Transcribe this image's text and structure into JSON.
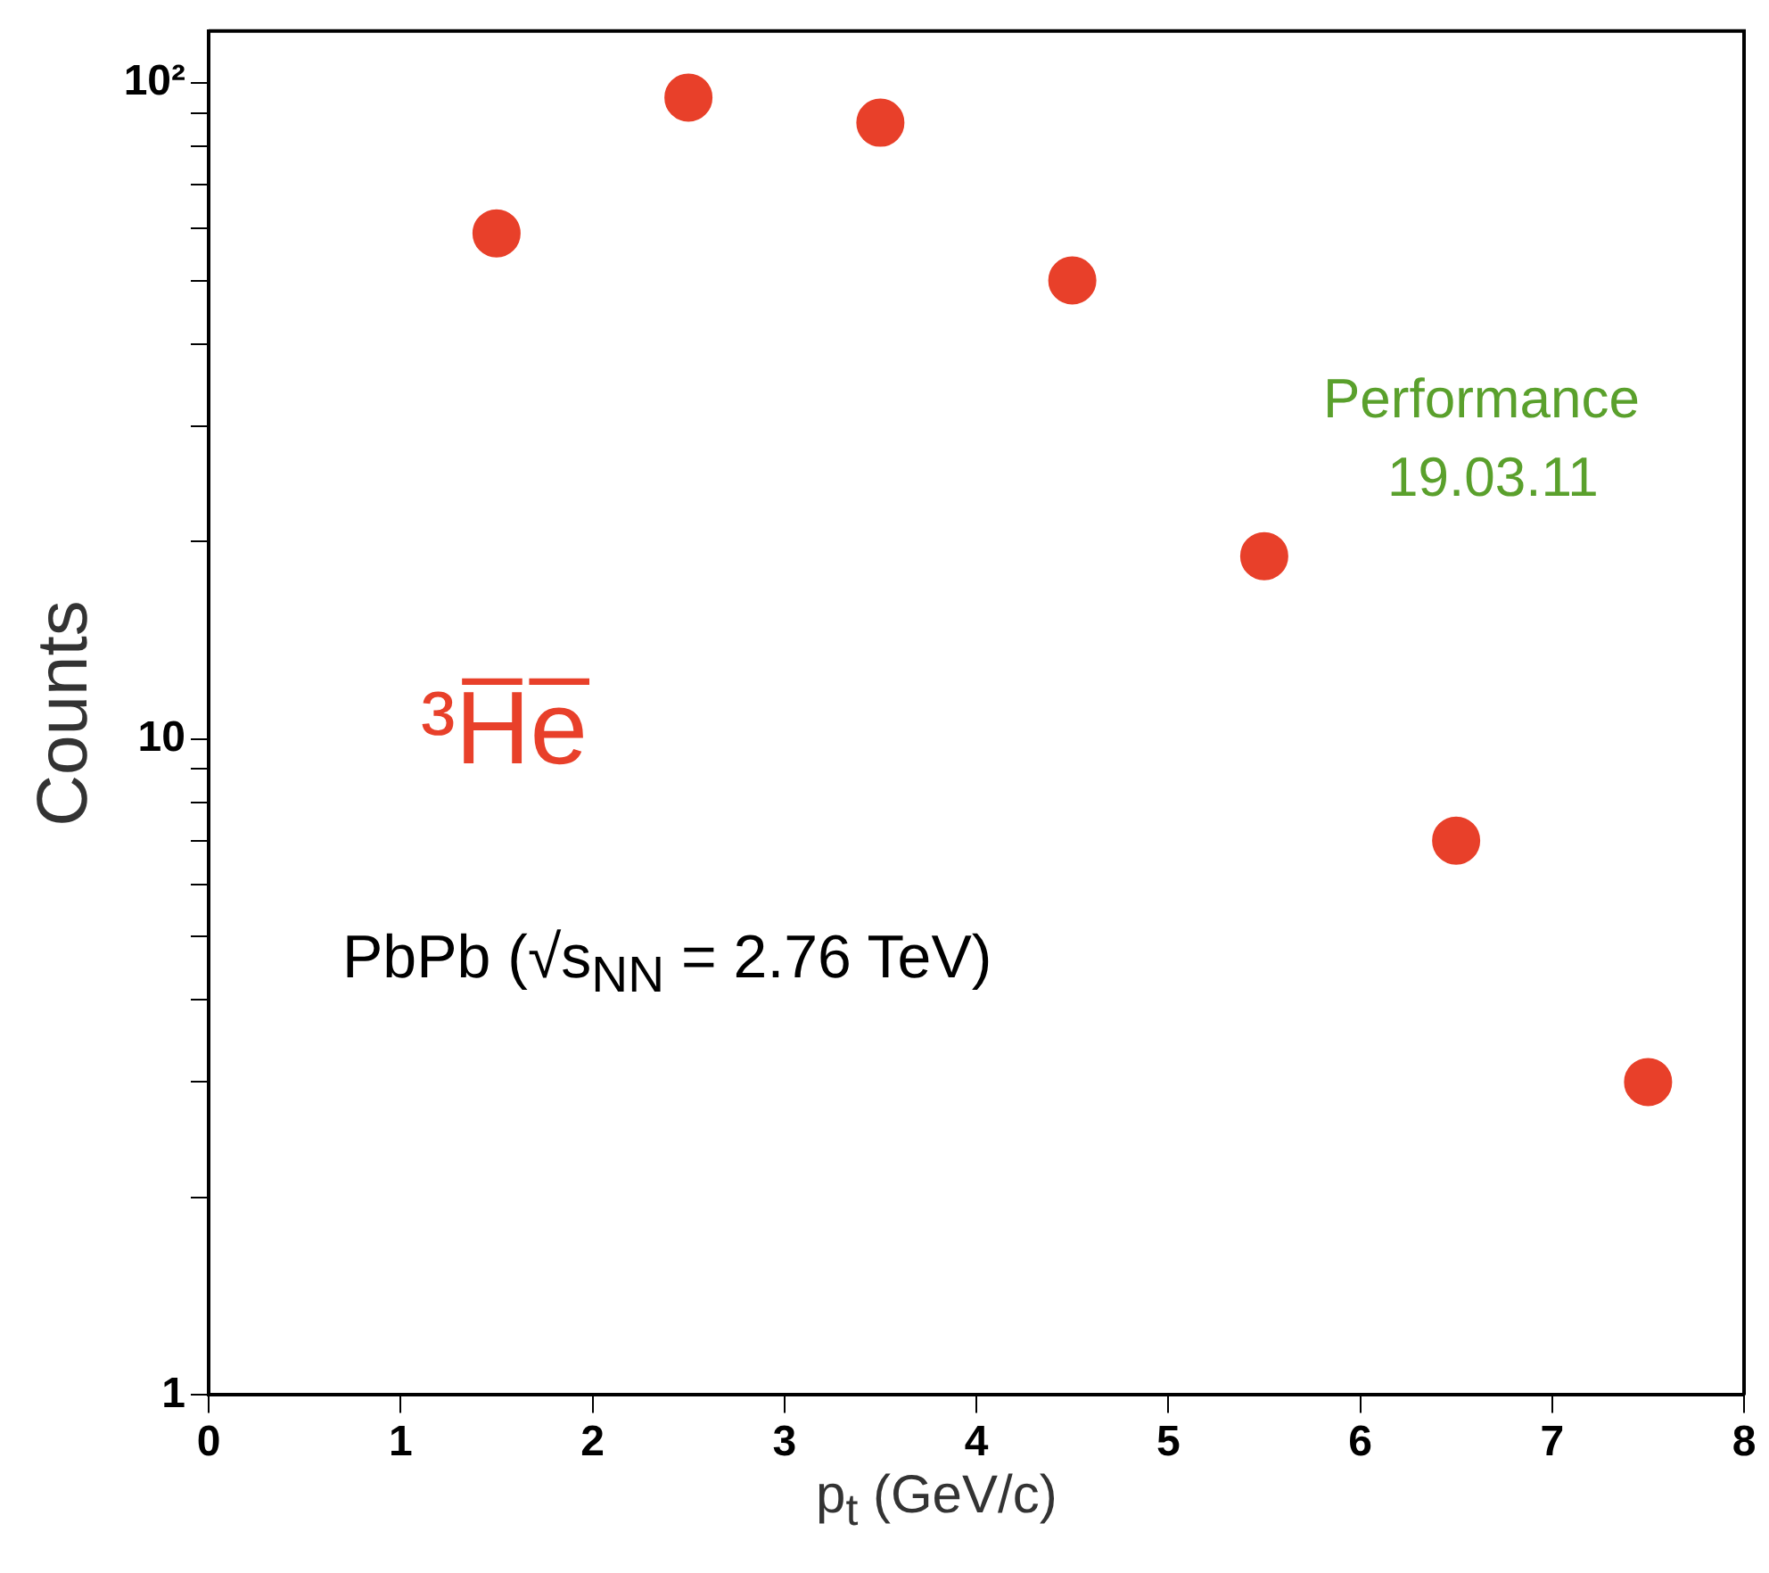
{
  "chart_data": {
    "type": "scatter",
    "xlabel": "p$_{t}$ (GeV/c)",
    "ylabel": "Counts",
    "log": "y",
    "marker": "circle",
    "grid": false,
    "legend": false,
    "x": [
      1.5,
      2.5,
      3.5,
      4.5,
      5.5,
      6.5,
      7.5
    ],
    "series": [
      {
        "color": "#e8402a",
        "values": [
          59,
          95,
          87,
          50,
          19,
          7,
          3.0
        ]
      }
    ],
    "xlim": [
      0,
      8
    ],
    "xticks": [
      0,
      1,
      2,
      3,
      4,
      5,
      6,
      7,
      8
    ],
    "ylim": [
      1,
      120
    ],
    "yticks": [
      1,
      {
        "value": 2,
        "label": null
      },
      {
        "value": 3,
        "label": null
      },
      {
        "value": 4,
        "label": null
      },
      {
        "value": 5,
        "label": null
      },
      {
        "value": 6,
        "label": null
      },
      {
        "value": 7,
        "label": null
      },
      {
        "value": 8,
        "label": null
      },
      {
        "value": 9,
        "label": null
      },
      10,
      {
        "value": 20,
        "label": null
      },
      {
        "value": 30,
        "label": null
      },
      {
        "value": 40,
        "label": null
      },
      {
        "value": 50,
        "label": null
      },
      {
        "value": 60,
        "label": null
      },
      {
        "value": 70,
        "label": null
      },
      {
        "value": 80,
        "label": null
      },
      {
        "value": 90,
        "label": null
      },
      {
        "value": 100,
        "label": "10²"
      }
    ],
    "annotations": [
      "³H̅e̅",
      "PbPb (√s$_{NN}$ = 2.76 TeV)",
      "Performance",
      "19.03.11"
    ]
  }
}
